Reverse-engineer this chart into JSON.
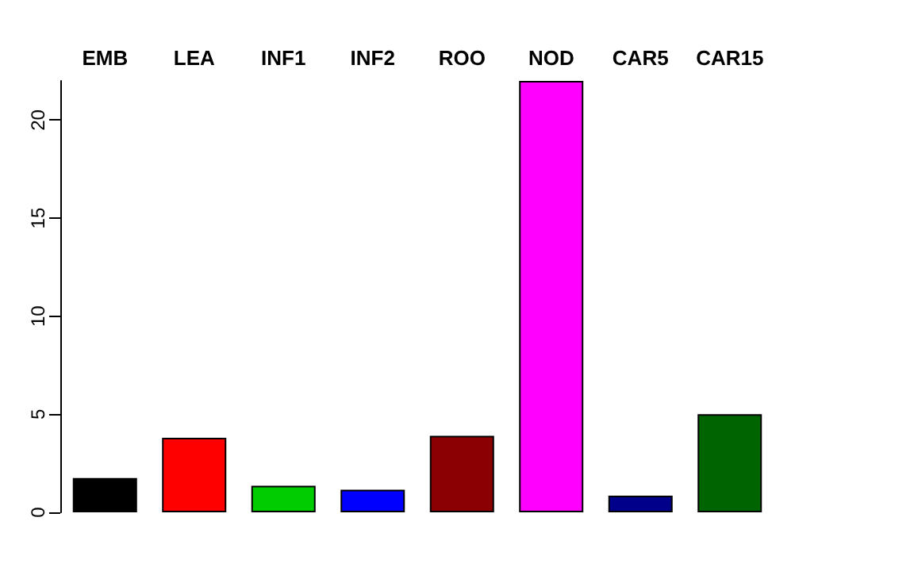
{
  "chart_data": {
    "type": "bar",
    "categories": [
      "EMB",
      "LEA",
      "INF1",
      "INF2",
      "ROO",
      "NOD",
      "CAR5",
      "CAR15"
    ],
    "values": [
      1.75,
      3.8,
      1.35,
      1.15,
      3.9,
      22,
      0.85,
      5
    ],
    "colors": [
      "#000000",
      "#ff0000",
      "#00cd00",
      "#0000ff",
      "#8b0000",
      "#ff00ff",
      "#00008b",
      "#006400"
    ],
    "ylim": [
      0,
      22
    ],
    "yticks": [
      0,
      5,
      10,
      15,
      20
    ],
    "grid": false
  }
}
